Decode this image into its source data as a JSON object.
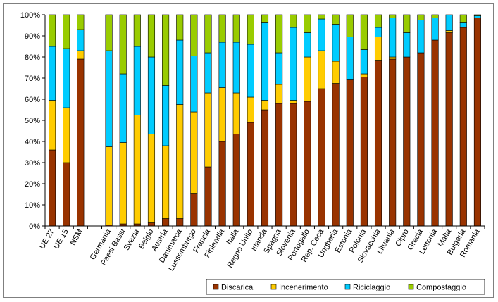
{
  "chart_data": {
    "type": "bar",
    "stacked": true,
    "ylim": [
      0,
      100
    ],
    "y_ticks": [
      "0%",
      "10%",
      "20%",
      "30%",
      "40%",
      "50%",
      "60%",
      "70%",
      "80%",
      "90%",
      "100%"
    ],
    "grid": false,
    "legend_position": "bottom-right",
    "categories": [
      "UE 27",
      "UE 15",
      "NSM",
      "",
      "Germania",
      "Paesi Bassi",
      "Svezia",
      "Belgio",
      "Austria",
      "Danimarca",
      "Lussemburgo",
      "Francia",
      "Finlandia",
      "Italia",
      "Regno Unito",
      "Irlanda",
      "Spagna",
      "Slovenia",
      "Portogallo",
      "Rep. Ceca",
      "Ungheria",
      "Estonia",
      "Polonia",
      "Slovacchia",
      "Lituania",
      "Cipro",
      "Grecia",
      "Lettonia",
      "Malta",
      "Bulgaria",
      "Romania"
    ],
    "series": [
      {
        "name": "Discarica",
        "color": "#993300",
        "values": [
          36,
          30,
          79,
          null,
          0.5,
          1,
          1,
          1.5,
          3.5,
          3.5,
          15.5,
          28,
          40,
          43.5,
          49,
          55,
          58,
          58,
          59,
          65,
          67.5,
          69.5,
          70.5,
          78.5,
          79,
          80,
          82,
          88,
          91.5,
          94,
          98.5
        ]
      },
      {
        "name": "Incenerimento",
        "color": "#ffcc00",
        "values": [
          23.5,
          26,
          4,
          null,
          37,
          38.5,
          51.5,
          42,
          34.5,
          54,
          38.5,
          35,
          25.5,
          19.5,
          12,
          4.5,
          9,
          1.5,
          21,
          18,
          10.5,
          0,
          1.5,
          11,
          1,
          0,
          0,
          0,
          1,
          0,
          0
        ]
      },
      {
        "name": "Riciclaggio",
        "color": "#00ccff",
        "values": [
          25.5,
          28,
          10,
          null,
          45.5,
          32.5,
          32.5,
          36.5,
          28.5,
          30.5,
          26.5,
          19,
          21.5,
          24,
          25,
          37,
          15,
          34.5,
          11.5,
          15,
          17.5,
          20,
          11.5,
          4.5,
          18.5,
          11.5,
          15.5,
          10.5,
          7.5,
          2.5,
          1
        ]
      },
      {
        "name": "Compostaggio",
        "color": "#99cc00",
        "values": [
          15,
          16,
          7,
          null,
          17,
          28,
          15,
          20,
          33.5,
          12,
          19.5,
          18,
          13,
          13,
          14,
          3.5,
          18,
          6,
          8.5,
          2,
          4.5,
          10.5,
          16.5,
          6,
          1.5,
          8.5,
          2.5,
          1.5,
          0,
          3.5,
          0.5
        ]
      }
    ]
  }
}
